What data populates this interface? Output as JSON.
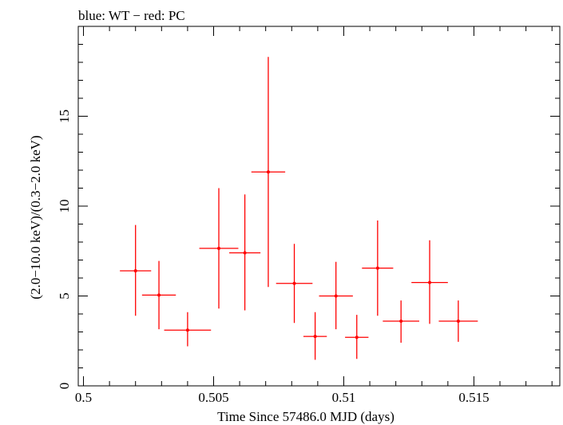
{
  "chart_data": {
    "type": "scatter",
    "title": "blue: WT − red: PC",
    "xlabel": "Time Since 57486.0 MJD (days)",
    "ylabel": "(2.0−10.0 keV)/(0.3−2.0 keV)",
    "xlim": [
      0.4998,
      0.5183
    ],
    "ylim": [
      0,
      20.0
    ],
    "x_ticks": [
      0.5,
      0.505,
      0.51,
      0.515
    ],
    "x_tick_labels": [
      "0.5",
      "0.505",
      "0.51",
      "0.515"
    ],
    "y_ticks": [
      0,
      5,
      10,
      15
    ],
    "y_tick_labels": [
      "0",
      "5",
      "10",
      "15"
    ],
    "grid": false,
    "colors": {
      "pc": "#ff0000",
      "axis": "#000000"
    },
    "series": [
      {
        "points": [
          {
            "x": 0.502,
            "y": 6.4,
            "xerr": 0.0006,
            "ylo": 3.9,
            "yhi": 8.95
          },
          {
            "x": 0.5029,
            "y": 5.05,
            "xerr": 0.00065,
            "ylo": 3.15,
            "yhi": 6.95
          },
          {
            "x": 0.504,
            "y": 3.1,
            "xerr": 0.0009,
            "ylo": 2.2,
            "yhi": 4.1
          },
          {
            "x": 0.5052,
            "y": 7.65,
            "xerr": 0.00075,
            "ylo": 4.3,
            "yhi": 11.0
          },
          {
            "x": 0.5062,
            "y": 7.4,
            "xerr": 0.0006,
            "ylo": 4.2,
            "yhi": 10.65
          },
          {
            "x": 0.5071,
            "y": 11.9,
            "xerr": 0.00065,
            "ylo": 5.5,
            "yhi": 18.3
          },
          {
            "x": 0.5081,
            "y": 5.7,
            "xerr": 0.0007,
            "ylo": 3.5,
            "yhi": 7.9
          },
          {
            "x": 0.5089,
            "y": 2.75,
            "xerr": 0.00045,
            "ylo": 1.45,
            "yhi": 4.1
          },
          {
            "x": 0.5097,
            "y": 5.0,
            "xerr": 0.00065,
            "ylo": 3.15,
            "yhi": 6.9
          },
          {
            "x": 0.5105,
            "y": 2.7,
            "xerr": 0.00045,
            "ylo": 1.5,
            "yhi": 3.95
          },
          {
            "x": 0.5113,
            "y": 6.55,
            "xerr": 0.0006,
            "ylo": 3.9,
            "yhi": 9.2
          },
          {
            "x": 0.5122,
            "y": 3.6,
            "xerr": 0.0007,
            "ylo": 2.4,
            "yhi": 4.75
          },
          {
            "x": 0.5133,
            "y": 5.75,
            "xerr": 0.0007,
            "ylo": 3.45,
            "yhi": 8.1
          },
          {
            "x": 0.5144,
            "y": 3.6,
            "xerr": 0.00075,
            "ylo": 2.45,
            "yhi": 4.75
          }
        ]
      }
    ]
  }
}
